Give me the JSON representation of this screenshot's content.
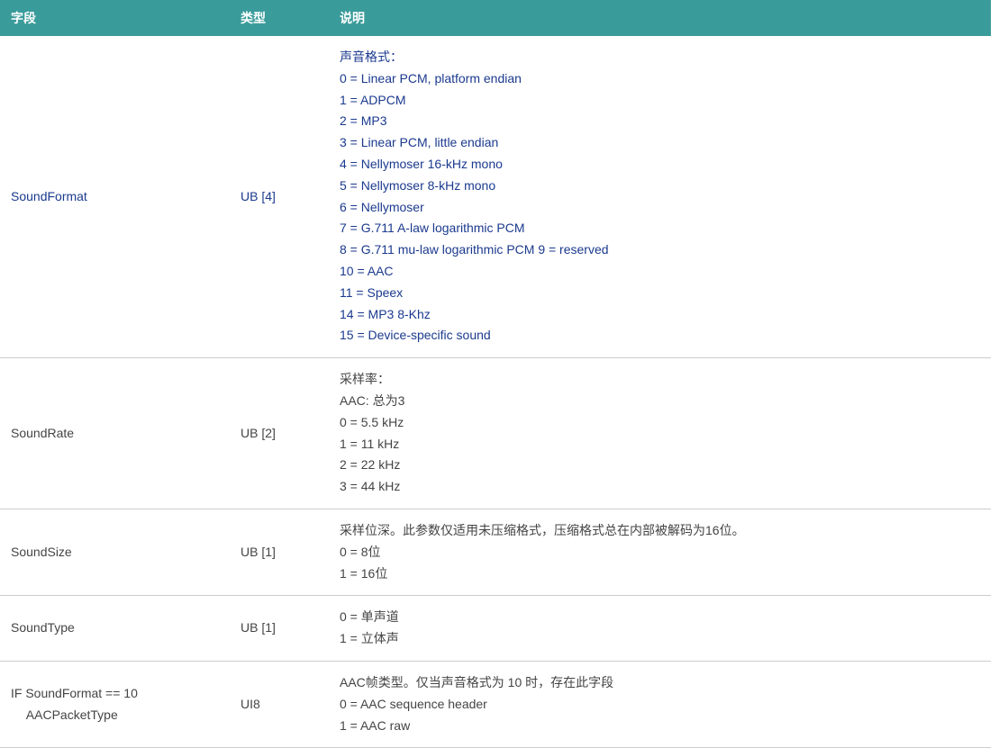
{
  "table": {
    "header_bg": "#3a9b9b",
    "header_fg": "#ffffff",
    "link_color": "#1b3a8e",
    "border_color": "#cccccc",
    "columns": {
      "field": "字段",
      "type": "类型",
      "desc": "说明"
    },
    "rows": [
      {
        "field": "SoundFormat",
        "type": "UB [4]",
        "link_style": true,
        "desc_lines": [
          "声音格式：",
          "0 = Linear PCM, platform endian",
          "1 = ADPCM",
          "2 = MP3",
          "3 = Linear PCM, little endian",
          "4 = Nellymoser 16-kHz mono",
          "5 = Nellymoser 8-kHz mono",
          "6 = Nellymoser",
          "7 = G.711 A-law logarithmic PCM",
          "8 = G.711 mu-law logarithmic PCM 9 = reserved",
          "10 = AAC",
          "11 = Speex",
          "14 = MP3 8-Khz",
          "15 = Device-specific sound"
        ]
      },
      {
        "field": "SoundRate",
        "type": "UB [2]",
        "link_style": false,
        "desc_lines": [
          "采样率：",
          "AAC: 总为3",
          "0 = 5.5 kHz",
          "1 = 11 kHz",
          "2 = 22 kHz",
          "3 = 44 kHz"
        ]
      },
      {
        "field": "SoundSize",
        "type": "UB [1]",
        "link_style": false,
        "desc_lines": [
          "采样位深。此参数仅适用未压缩格式，压缩格式总在内部被解码为16位。",
          "0 = 8位",
          "1 = 16位"
        ]
      },
      {
        "field": "SoundType",
        "type": "UB [1]",
        "link_style": false,
        "desc_lines": [
          "0 = 单声道",
          "1 = 立体声"
        ]
      },
      {
        "field_lines": [
          "IF SoundFormat == 10",
          "AACPacketType"
        ],
        "field_indent": [
          false,
          true
        ],
        "type": "UI8",
        "link_style": false,
        "desc_lines": [
          "AAC帧类型。仅当声音格式为 10 时，存在此字段",
          "0 = AAC sequence header",
          "1 = AAC raw"
        ]
      }
    ]
  }
}
